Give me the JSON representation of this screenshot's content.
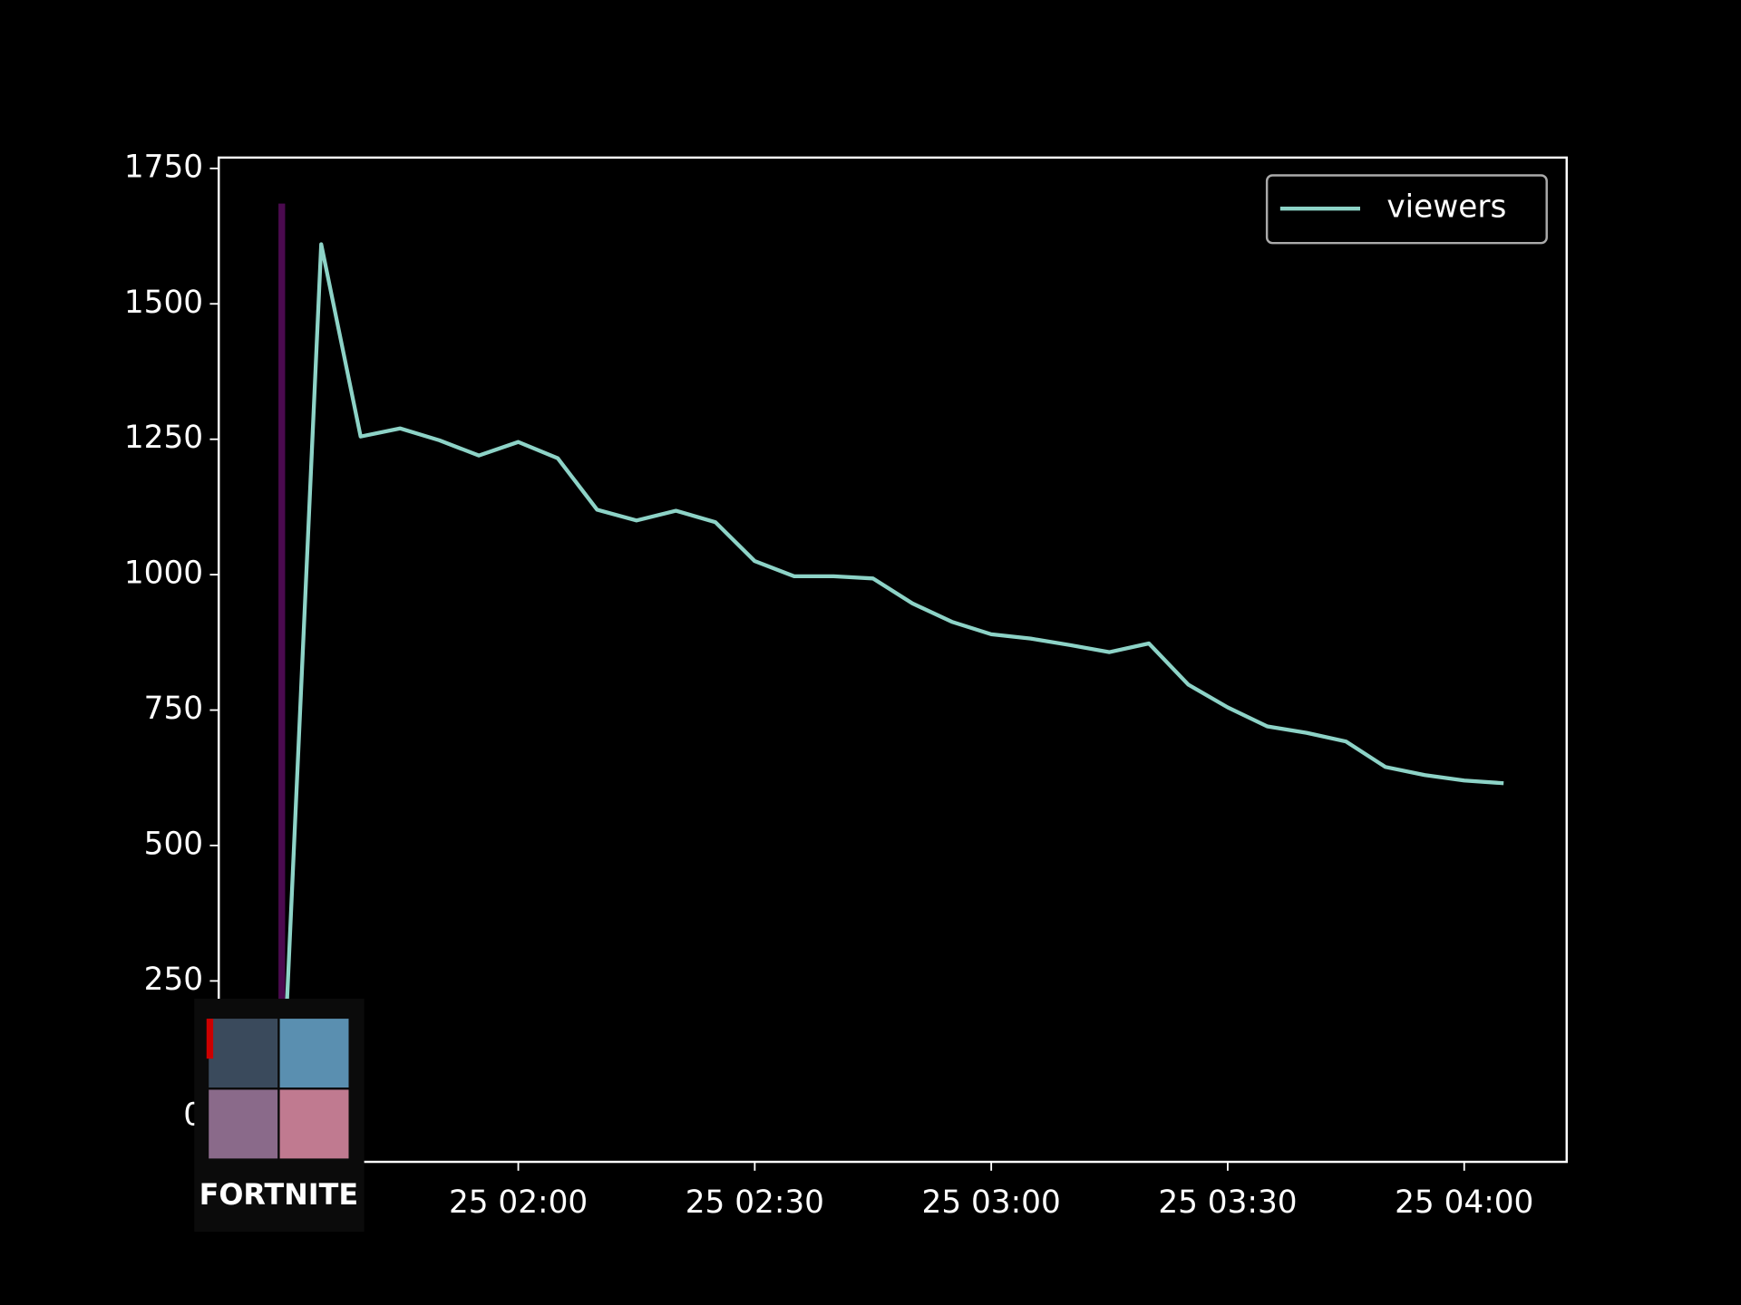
{
  "chart_data": {
    "type": "line",
    "x": [
      "25 01:30",
      "25 01:35",
      "25 01:40",
      "25 01:45",
      "25 01:50",
      "25 01:55",
      "25 02:00",
      "25 02:05",
      "25 02:10",
      "25 02:15",
      "25 02:20",
      "25 02:25",
      "25 02:30",
      "25 02:35",
      "25 02:40",
      "25 02:45",
      "25 02:50",
      "25 02:55",
      "25 03:00",
      "25 03:05",
      "25 03:10",
      "25 03:15",
      "25 03:20",
      "25 03:25",
      "25 03:30",
      "25 03:35",
      "25 03:40",
      "25 03:45",
      "25 03:50",
      "25 03:55",
      "25 04:00",
      "25 04:05"
    ],
    "series": [
      {
        "name": "viewers",
        "color": "#8dd3c7",
        "values": [
          0,
          1610,
          1255,
          1270,
          1248,
          1220,
          1245,
          1215,
          1120,
          1100,
          1118,
          1097,
          1025,
          997,
          997,
          993,
          947,
          913,
          890,
          882,
          870,
          857,
          873,
          797,
          755,
          720,
          708,
          692,
          645,
          630,
          620,
          615
        ]
      }
    ],
    "xlim": [
      "25 01:22",
      "25 04:13"
    ],
    "xticks": [
      "25 02:00",
      "25 02:30",
      "25 03:00",
      "25 03:30",
      "25 04:00"
    ],
    "ylim": [
      -84,
      1770
    ],
    "yticks": [
      0,
      250,
      500,
      750,
      1000,
      1250,
      1500,
      1750
    ],
    "vline": {
      "x": "25 01:30",
      "ymax": 1685,
      "color": "#4b0a4f"
    },
    "legend": "upper right",
    "image_label": "FORTNITE"
  }
}
